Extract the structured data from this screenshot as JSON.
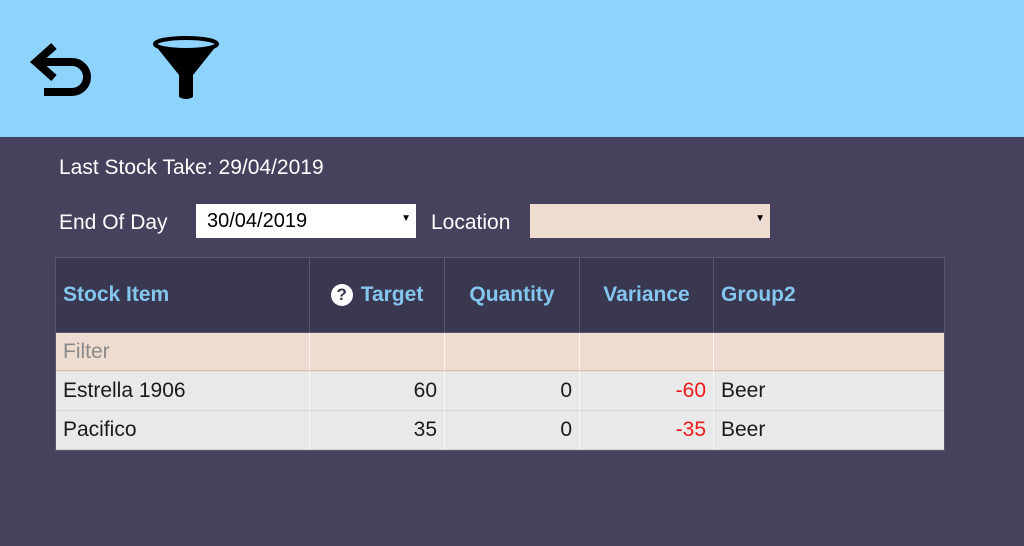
{
  "toolbar": {
    "back_icon": "undo-arrow-icon",
    "filter_icon": "funnel-icon"
  },
  "info": {
    "last_stock_take": "Last Stock Take: 29/04/2019"
  },
  "controls": {
    "end_of_day_label": "End Of Day",
    "end_of_day_value": "30/04/2019",
    "location_label": "Location",
    "location_value": ""
  },
  "grid": {
    "columns": [
      "Stock Item",
      "Target",
      "Quantity",
      "Variance",
      "Group2"
    ],
    "filter_placeholder": "Filter",
    "rows": [
      {
        "item": "Estrella 1906",
        "target": "60",
        "quantity": "0",
        "variance": "-60",
        "group": "Beer"
      },
      {
        "item": "Pacifico",
        "target": "35",
        "quantity": "0",
        "variance": "-35",
        "group": "Beer"
      }
    ]
  },
  "colors": {
    "toolbar_bg": "#8dd3fb",
    "page_bg": "#46425d",
    "header_text": "#84c6ee",
    "negative": "#ee1a1a",
    "filter_bg": "#eedcd1"
  }
}
